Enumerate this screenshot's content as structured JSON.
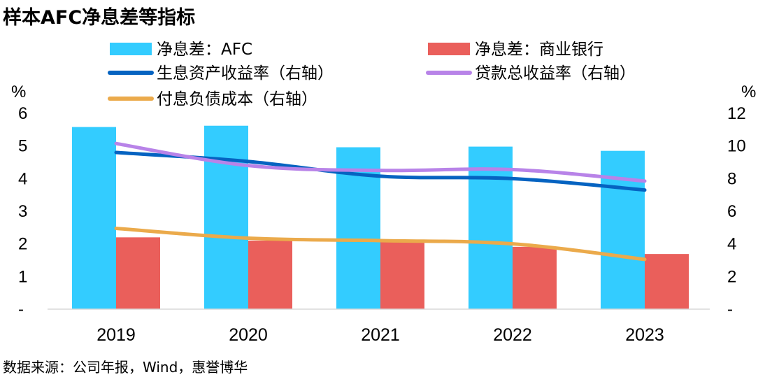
{
  "chart_data": {
    "type": "bar",
    "title": "样本AFC净息差等指标",
    "source": "数据来源：公司年报，Wind，惠誉博华",
    "categories": [
      "2019",
      "2020",
      "2021",
      "2022",
      "2023"
    ],
    "left_axis": {
      "unit": "%",
      "ylim": [
        0,
        6
      ],
      "ticks": [
        "-",
        "1",
        "2",
        "3",
        "4",
        "5",
        "6"
      ]
    },
    "right_axis": {
      "unit": "%",
      "ylim": [
        0,
        12
      ],
      "ticks": [
        "-",
        "2",
        "4",
        "6",
        "8",
        "10",
        "12"
      ]
    },
    "bar_series": [
      {
        "name": "净息差：AFC",
        "color": "#33ccff",
        "values": [
          5.58,
          5.62,
          4.96,
          4.98,
          4.85
        ]
      },
      {
        "name": "净息差：商业银行",
        "color": "#ea5f5b",
        "values": [
          2.2,
          2.1,
          2.08,
          1.91,
          1.69
        ]
      }
    ],
    "line_series": [
      {
        "name": "生息资产收益率（右轴）",
        "color": "#0563c1",
        "axis": "right",
        "values": [
          9.6,
          9.05,
          8.15,
          8.0,
          7.3
        ]
      },
      {
        "name": "贷款总收益率（右轴）",
        "color": "#b883e8",
        "axis": "right",
        "values": [
          10.15,
          8.8,
          8.5,
          8.55,
          7.85
        ]
      },
      {
        "name": "付息负债成本（右轴）",
        "color": "#ebaa4b",
        "axis": "right",
        "values": [
          4.95,
          4.35,
          4.2,
          4.0,
          3.05
        ]
      }
    ],
    "legend_position": "top",
    "grid": false
  }
}
